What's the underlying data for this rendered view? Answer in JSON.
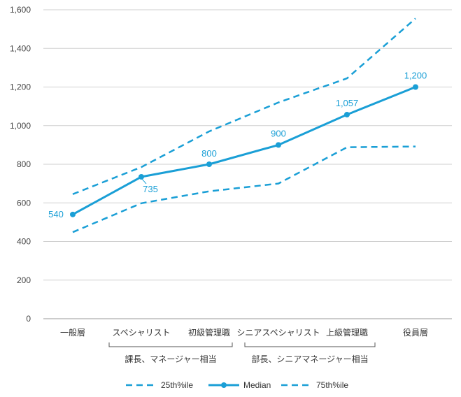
{
  "chart_data": {
    "type": "line",
    "categories": [
      "一般層",
      "スペシャリスト",
      "初級管理職",
      "シニアスペシャリスト",
      "上級管理職",
      "役員層"
    ],
    "category_groups": [
      {
        "label": "課長、マネージャー相当",
        "from": 1,
        "to": 2
      },
      {
        "label": "部長、シニアマネージャー相当",
        "from": 3,
        "to": 4
      }
    ],
    "series": [
      {
        "name": "25th%ile",
        "values": [
          448,
          598,
          660,
          700,
          888,
          892
        ],
        "style": "dashed",
        "color": "#1a9fd6"
      },
      {
        "name": "Median",
        "values": [
          540,
          735,
          800,
          900,
          1057,
          1200
        ],
        "style": "solid-markers",
        "color": "#1a9fd6",
        "data_labels": [
          "540",
          "735",
          "800",
          "900",
          "1,057",
          "1,200"
        ]
      },
      {
        "name": "75th%ile",
        "values": [
          645,
          785,
          970,
          1120,
          1245,
          1555
        ],
        "style": "dashed",
        "color": "#1a9fd6"
      }
    ],
    "y_ticks": [
      "0",
      "200",
      "400",
      "600",
      "800",
      "1,000",
      "1,200",
      "1,400",
      "1,600"
    ],
    "ylim": [
      0,
      1600
    ],
    "grid": true,
    "legend_position": "bottom"
  }
}
